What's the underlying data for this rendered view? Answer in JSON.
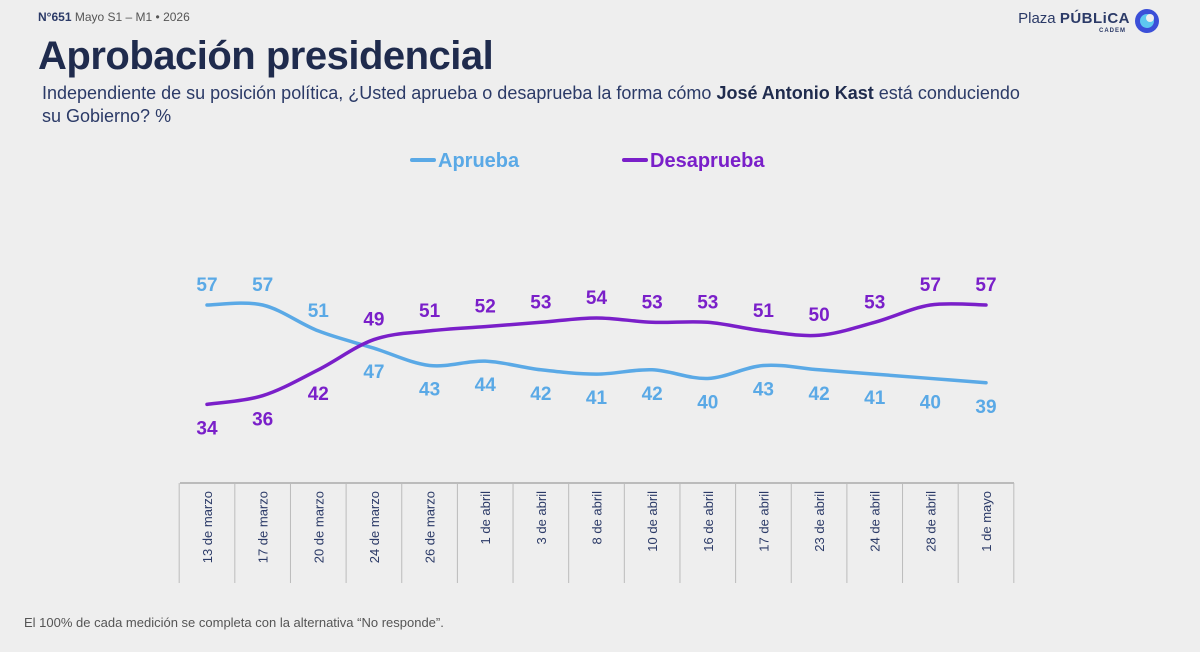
{
  "header": {
    "issue": "N°651",
    "period": "Mayo S1 – M1 • 2026"
  },
  "brand": {
    "name_light": "Plaza ",
    "name_bold": "PÚBLiCA",
    "sub": "CADEM"
  },
  "title": "Aprobación presidencial",
  "question": {
    "before": "Independiente de su posición política, ¿Usted aprueba o desaprueba la forma cómo ",
    "bold": "José Antonio Kast",
    "after": " está conduciendo su Gobierno? %"
  },
  "footnote": "El 100% de cada medición se completa con la alternativa “No responde”.",
  "colors": {
    "aprueba": "#5aa9e6",
    "desaprueba": "#7a1fc9",
    "title": "#1f2b4d",
    "axis": "#888888"
  },
  "chart_data": {
    "type": "line",
    "categories": [
      "13 de marzo",
      "17 de marzo",
      "20 de marzo",
      "24 de marzo",
      "26 de marzo",
      "1 de abril",
      "3 de abril",
      "8 de abril",
      "10 de abril",
      "16 de abril",
      "17 de abril",
      "23 de abril",
      "24 de abril",
      "28 de abril",
      "1 de mayo"
    ],
    "series": [
      {
        "name": "Aprueba",
        "color": "#5aa9e6",
        "values": [
          57,
          57,
          51,
          47,
          43,
          44,
          42,
          41,
          42,
          40,
          43,
          42,
          41,
          40,
          39
        ]
      },
      {
        "name": "Desaprueba",
        "color": "#7a1fc9",
        "values": [
          34,
          36,
          42,
          49,
          51,
          52,
          53,
          54,
          53,
          53,
          51,
          50,
          53,
          57,
          57
        ]
      }
    ],
    "legend_position": "top-center",
    "grid": false
  }
}
